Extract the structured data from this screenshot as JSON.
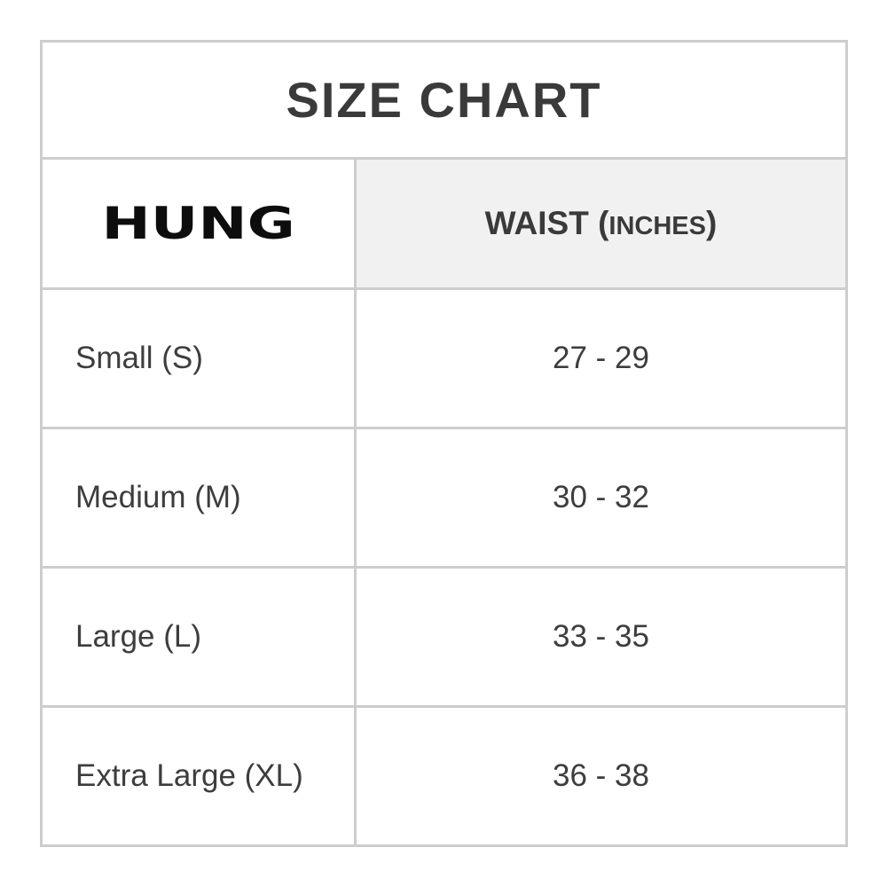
{
  "title": "SIZE CHART",
  "logo_text": "HUNG",
  "waist_header": {
    "prefix": "WAIST (",
    "unit": "INCHES",
    "suffix": ")"
  },
  "rows": [
    {
      "size": "Small (S)",
      "waist": "27 - 29"
    },
    {
      "size": "Medium (M)",
      "waist": "30 - 32"
    },
    {
      "size": "Large (L)",
      "waist": "33 - 35"
    },
    {
      "size": "Extra Large (XL)",
      "waist": "36 - 38"
    }
  ],
  "colors": {
    "border": "#cdcdcd",
    "header_bg": "#f1f1f1",
    "text": "#3d3d3d",
    "title_text": "#3a3a3a",
    "logo_text_color": "#0d0d0d",
    "background": "#ffffff"
  },
  "chart_data": {
    "type": "table",
    "title": "SIZE CHART",
    "columns": [
      "HUNG",
      "WAIST (INCHES)"
    ],
    "rows": [
      [
        "Small (S)",
        "27 - 29"
      ],
      [
        "Medium (M)",
        "30 - 32"
      ],
      [
        "Large (L)",
        "33 - 35"
      ],
      [
        "Extra Large (XL)",
        "36 - 38"
      ]
    ],
    "layout_hints": {
      "title_row_spans_full_width": true,
      "header_waist_cell_background": "#f1f1f1",
      "size_column_align": "left",
      "waist_column_align": "center",
      "grid": true
    }
  }
}
